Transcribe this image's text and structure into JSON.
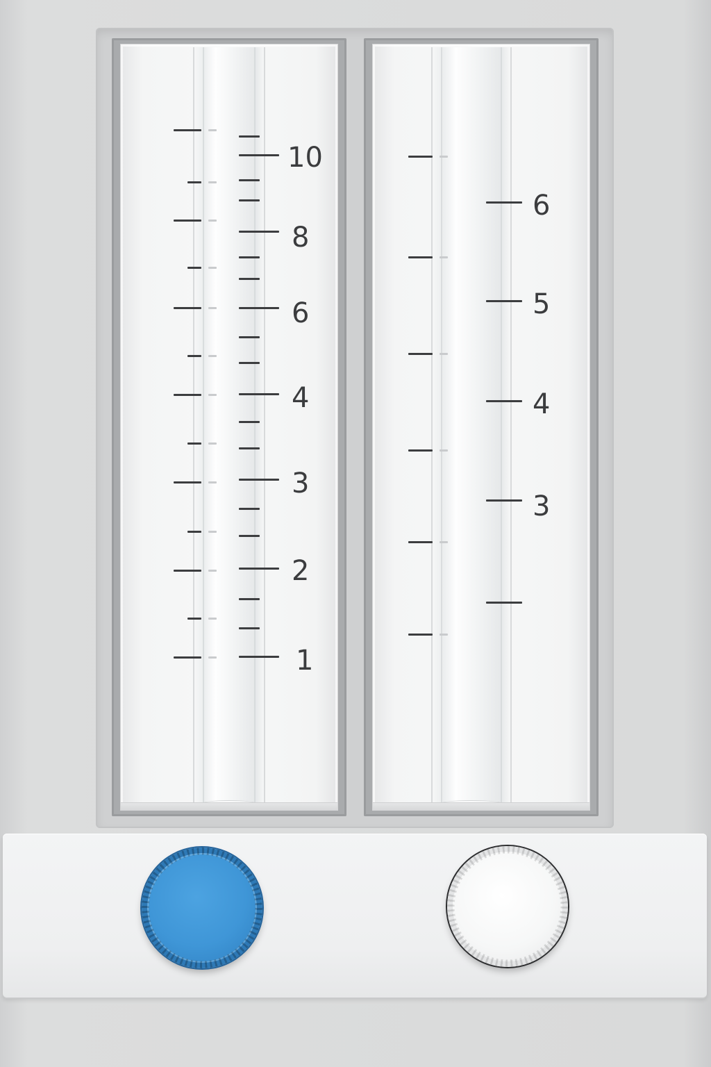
{
  "left_flowmeter": {
    "scale_labels": [
      "10",
      "8",
      "6",
      "4",
      "3",
      "2",
      "1"
    ]
  },
  "right_flowmeter": {
    "scale_labels": [
      "6",
      "5",
      "4",
      "3"
    ]
  },
  "controls": {
    "left_knob_color": "#3f96d7",
    "right_knob_color": "#f6f7f7"
  }
}
